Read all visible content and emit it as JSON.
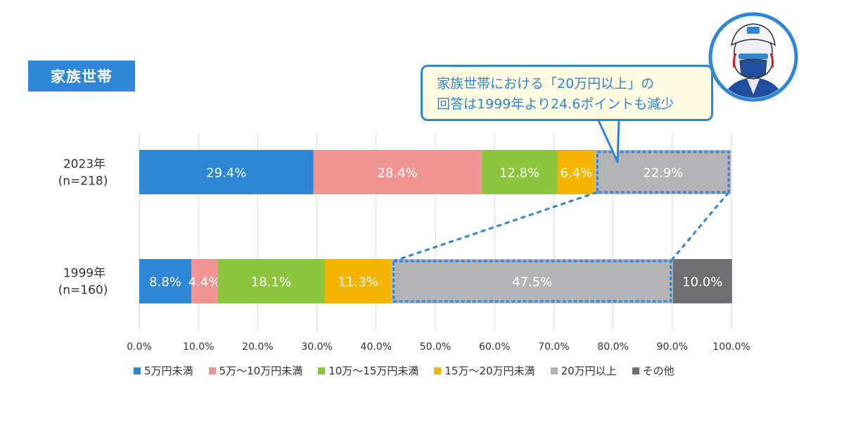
{
  "section_label": "家族世帯",
  "callout": {
    "line1": "家族世帯における「20万円以上」の",
    "line2": "回答は1999年より24.6ポイントも減少"
  },
  "chart_data": {
    "type": "bar",
    "orientation": "horizontal",
    "stacked": true,
    "xlim": [
      0,
      100
    ],
    "x_ticks": [
      "0.0%",
      "10.0%",
      "20.0%",
      "30.0%",
      "40.0%",
      "50.0%",
      "60.0%",
      "70.0%",
      "80.0%",
      "90.0%",
      "100.0%"
    ],
    "grid": true,
    "legend_position": "bottom",
    "categories": [
      {
        "label_line1": "2023年",
        "label_line2": "(n=218)"
      },
      {
        "label_line1": "1999年",
        "label_line2": "(n=160)"
      }
    ],
    "series": [
      {
        "name": "5万円未満",
        "color": "#2e86d6",
        "values": [
          29.4,
          8.8
        ],
        "labels": [
          "29.4%",
          "8.8%"
        ]
      },
      {
        "name": "5万～10万円未満",
        "color": "#f09494",
        "values": [
          28.4,
          4.4
        ],
        "labels": [
          "28.4%",
          "4.4%"
        ]
      },
      {
        "name": "10万～15万円未満",
        "color": "#8cc63e",
        "values": [
          12.8,
          18.1
        ],
        "labels": [
          "12.8%",
          "18.1%"
        ]
      },
      {
        "name": "15万～20万円未満",
        "color": "#f5b400",
        "values": [
          6.4,
          11.3
        ],
        "labels": [
          "6.4%",
          "11.3%"
        ]
      },
      {
        "name": "20万円以上",
        "color": "#b4b4b6",
        "values": [
          22.9,
          47.5
        ],
        "labels": [
          "22.9%",
          "47.5%"
        ]
      },
      {
        "name": "その他",
        "color": "#6e6e70",
        "values": [
          0,
          10.0
        ],
        "labels": [
          "",
          "10.0%"
        ]
      }
    ],
    "highlight_series": "20万円以上"
  }
}
